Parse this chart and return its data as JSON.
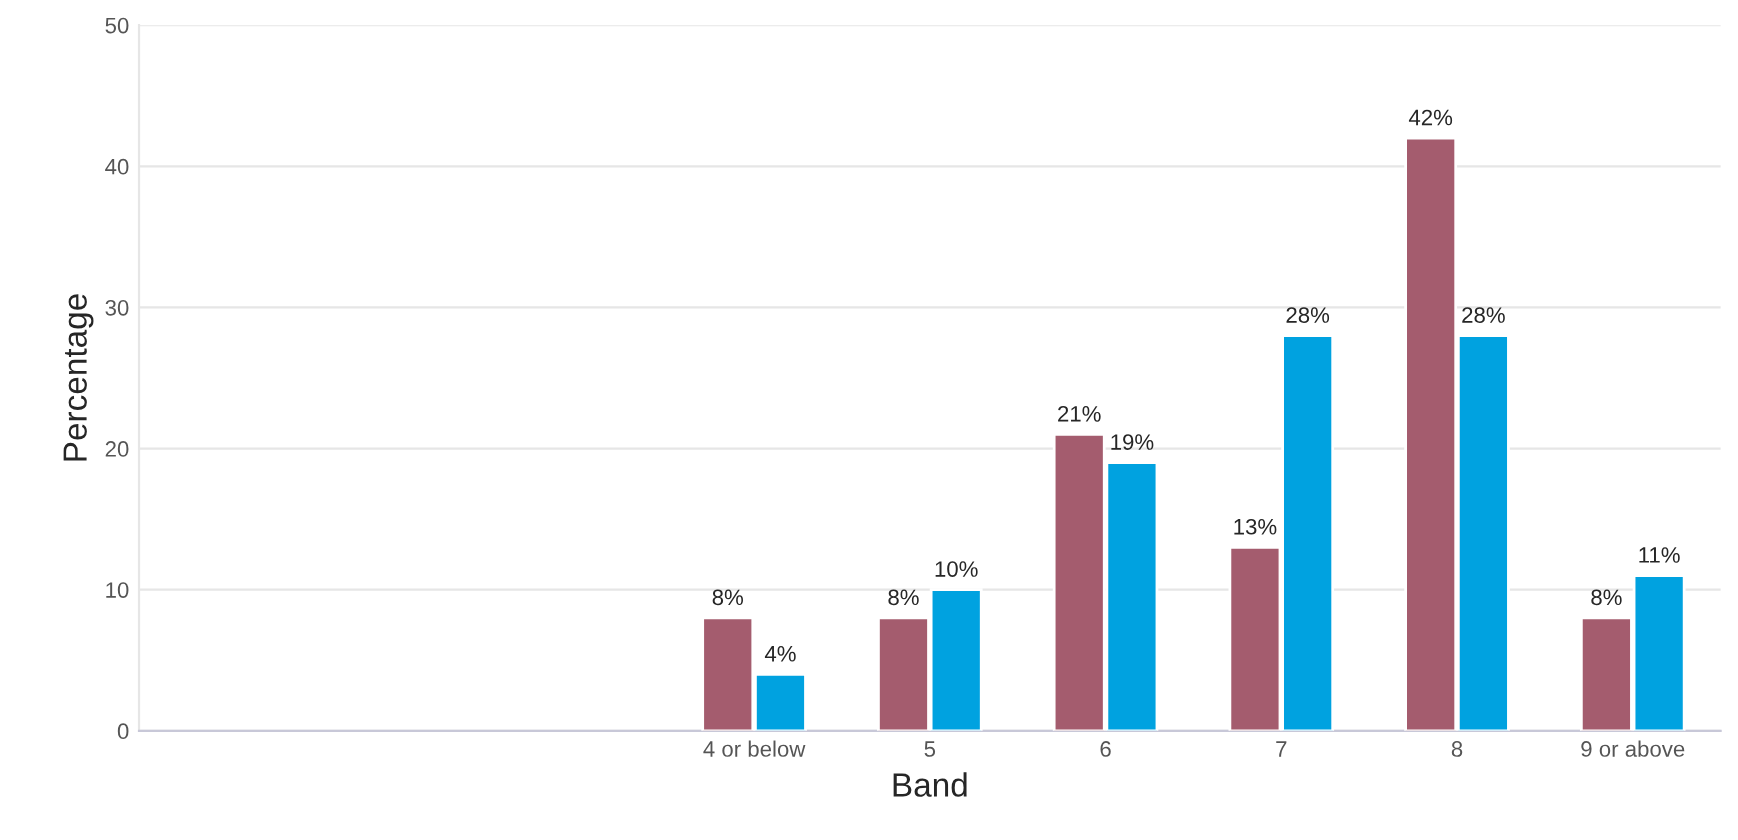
{
  "chart_data": {
    "type": "bar",
    "xlabel": "Band",
    "ylabel": "Percentage",
    "categories": [
      null,
      null,
      null,
      "4 or below",
      "5",
      "6",
      "7",
      "8",
      "9 or above"
    ],
    "series": [
      {
        "color": "#a45c6e",
        "values": [
          null,
          null,
          null,
          8,
          8,
          21,
          13,
          42,
          8
        ],
        "value_labels": [
          null,
          null,
          null,
          "8%",
          "8%",
          "21%",
          "13%",
          "42%",
          "8%"
        ]
      },
      {
        "color": "#00a2e0",
        "values": [
          null,
          null,
          null,
          4,
          10,
          19,
          28,
          28,
          11
        ],
        "value_labels": [
          null,
          null,
          null,
          "4%",
          "10%",
          "19%",
          "28%",
          "28%",
          "11%"
        ]
      }
    ],
    "ylim": [
      0,
      50
    ],
    "yticks": [
      0,
      10,
      20,
      30,
      40,
      50
    ],
    "grid": "y"
  }
}
